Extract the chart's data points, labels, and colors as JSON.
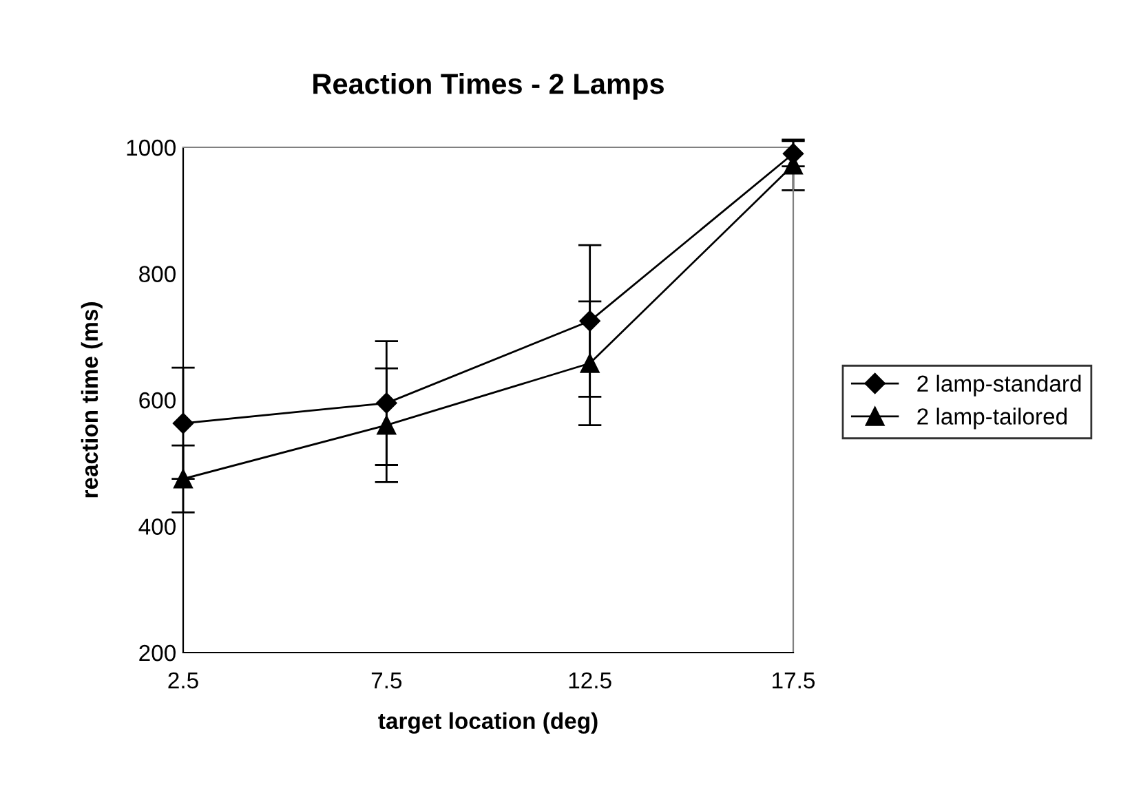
{
  "chart_data": {
    "type": "line",
    "title": "Reaction Times - 2 Lamps",
    "xlabel": "target location (deg)",
    "ylabel": "reaction time (ms)",
    "x": [
      2.5,
      7.5,
      12.5,
      17.5
    ],
    "series": [
      {
        "name": "2 lamp-standard",
        "color": "#000000",
        "marker": "diamond",
        "values": [
          563,
          595,
          725,
          990
        ],
        "errors": [
          88,
          98,
          120,
          20
        ]
      },
      {
        "name": "2 lamp-tailored",
        "color": "#000000",
        "marker": "triangle",
        "values": [
          475,
          560,
          658,
          972
        ],
        "errors": [
          53,
          90,
          98,
          40
        ]
      }
    ],
    "xlim": [
      2.5,
      17.5
    ],
    "xticks": [
      2.5,
      7.5,
      12.5,
      17.5
    ],
    "ylim": [
      200,
      1000
    ],
    "yticks": [
      200,
      400,
      600,
      800,
      1000
    ],
    "grid": false,
    "legend": "right",
    "line_style": "solid"
  }
}
